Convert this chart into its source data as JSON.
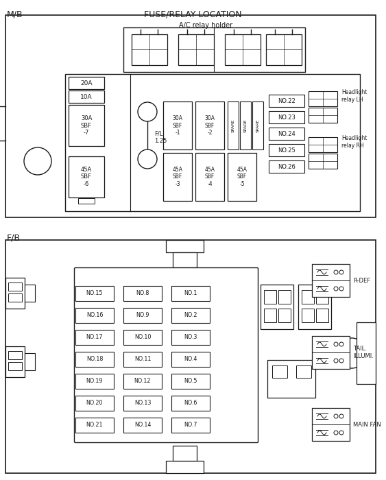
{
  "title": "FUSE/RELAY LOCATION",
  "mb_label": "M/B",
  "fb_label": "F/B",
  "bg_color": "#ffffff",
  "line_color": "#1a1a1a",
  "figsize": [
    5.63,
    7.0
  ],
  "dpi": 100,
  "fb_fuses": [
    [
      "NO.15",
      "NO.8",
      "NO.1"
    ],
    [
      "NO.16",
      "NO.9",
      "NO.2"
    ],
    [
      "NO.17",
      "NO.10",
      "NO.3"
    ],
    [
      "NO.18",
      "NO.11",
      "NO.4"
    ],
    [
      "NO.19",
      "NO.12",
      "NO.5"
    ],
    [
      "NO.20",
      "NO.13",
      "NO.6"
    ],
    [
      "NO.21",
      "NO.14",
      "NO.7"
    ]
  ]
}
